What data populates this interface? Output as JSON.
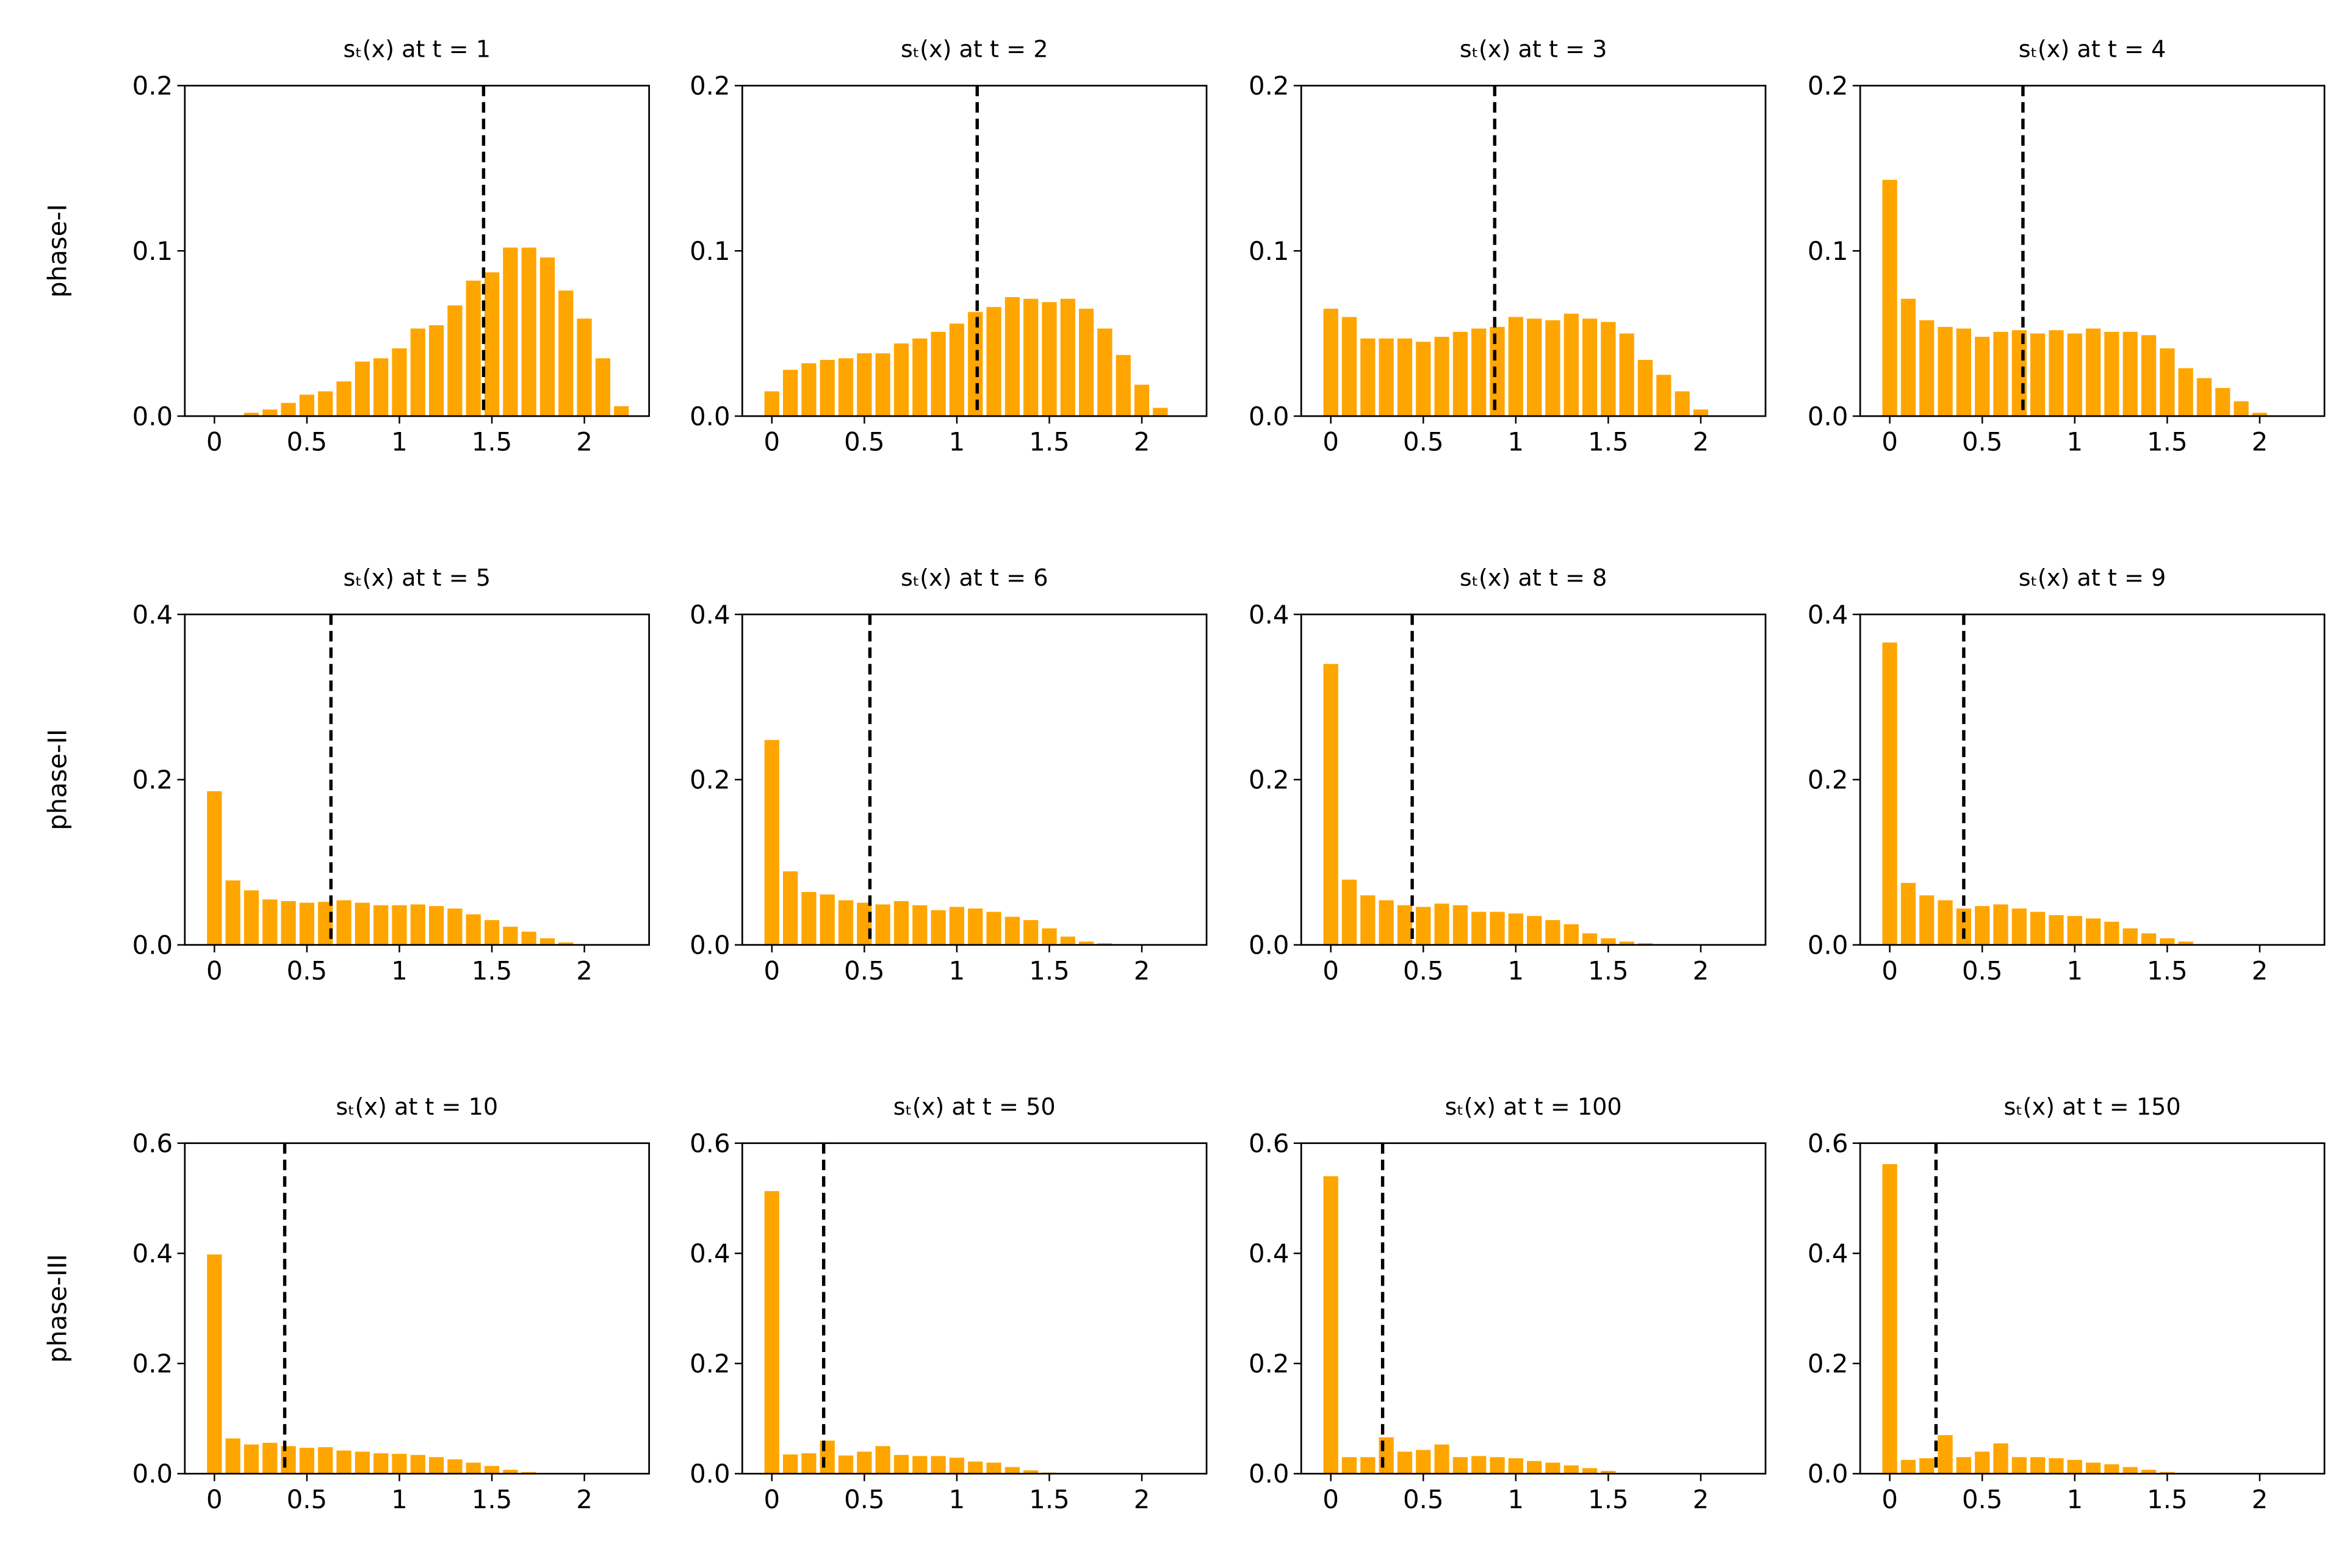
{
  "chart_data": [
    {
      "type": "bar",
      "title": "sₜ(x) at t = 1",
      "ylabel": "phase-I",
      "color": "#ffa500",
      "x": [
        0,
        0.1,
        0.2,
        0.3,
        0.4,
        0.5,
        0.6,
        0.7,
        0.8,
        0.9,
        1.0,
        1.1,
        1.2,
        1.3,
        1.4,
        1.5,
        1.6,
        1.7,
        1.8,
        1.9,
        2.0,
        2.1,
        2.2
      ],
      "values": [
        0,
        0,
        0.002,
        0.004,
        0.008,
        0.013,
        0.015,
        0.021,
        0.033,
        0.035,
        0.041,
        0.053,
        0.055,
        0.067,
        0.082,
        0.087,
        0.102,
        0.102,
        0.096,
        0.076,
        0.059,
        0.035,
        0.006
      ],
      "xlim": [
        -0.16,
        2.35
      ],
      "ylim": [
        0,
        0.2
      ],
      "xticks": [
        0,
        0.5,
        1,
        1.5,
        2
      ],
      "yticks": [
        {
          "value": 0,
          "label": "0.0"
        },
        0.1,
        0.2
      ],
      "vline": 1.455,
      "vline_color": "#000000"
    },
    {
      "type": "bar",
      "title": "sₜ(x) at t = 2",
      "color": "#ffa500",
      "x": [
        0,
        0.1,
        0.2,
        0.3,
        0.4,
        0.5,
        0.6,
        0.7,
        0.8,
        0.9,
        1.0,
        1.1,
        1.2,
        1.3,
        1.4,
        1.5,
        1.6,
        1.7,
        1.8,
        1.9,
        2.0,
        2.1,
        2.2
      ],
      "values": [
        0.015,
        0.028,
        0.032,
        0.034,
        0.035,
        0.038,
        0.038,
        0.044,
        0.047,
        0.051,
        0.056,
        0.063,
        0.066,
        0.072,
        0.071,
        0.069,
        0.071,
        0.065,
        0.053,
        0.037,
        0.019,
        0.005,
        0
      ],
      "xlim": [
        -0.16,
        2.35
      ],
      "ylim": [
        0,
        0.2
      ],
      "xticks": [
        0,
        0.5,
        1,
        1.5,
        2
      ],
      "yticks": [
        {
          "value": 0,
          "label": "0.0"
        },
        0.1,
        0.2
      ],
      "vline": 1.11,
      "vline_color": "#000000"
    },
    {
      "type": "bar",
      "title": "sₜ(x) at t = 3",
      "color": "#ffa500",
      "x": [
        0,
        0.1,
        0.2,
        0.3,
        0.4,
        0.5,
        0.6,
        0.7,
        0.8,
        0.9,
        1.0,
        1.1,
        1.2,
        1.3,
        1.4,
        1.5,
        1.6,
        1.7,
        1.8,
        1.9,
        2.0,
        2.1,
        2.2
      ],
      "values": [
        0.065,
        0.06,
        0.047,
        0.047,
        0.047,
        0.045,
        0.048,
        0.051,
        0.053,
        0.054,
        0.06,
        0.059,
        0.058,
        0.062,
        0.059,
        0.057,
        0.05,
        0.034,
        0.025,
        0.015,
        0.004,
        0,
        0
      ],
      "xlim": [
        -0.16,
        2.35
      ],
      "ylim": [
        0,
        0.2
      ],
      "xticks": [
        0,
        0.5,
        1,
        1.5,
        2
      ],
      "yticks": [
        {
          "value": 0,
          "label": "0.0"
        },
        0.1,
        0.2
      ],
      "vline": 0.886,
      "vline_color": "#000000"
    },
    {
      "type": "bar",
      "title": "sₜ(x) at t = 4",
      "color": "#ffa500",
      "x": [
        0,
        0.1,
        0.2,
        0.3,
        0.4,
        0.5,
        0.6,
        0.7,
        0.8,
        0.9,
        1.0,
        1.1,
        1.2,
        1.3,
        1.4,
        1.5,
        1.6,
        1.7,
        1.8,
        1.9,
        2.0,
        2.1,
        2.2
      ],
      "values": [
        0.143,
        0.071,
        0.058,
        0.054,
        0.053,
        0.048,
        0.051,
        0.052,
        0.05,
        0.052,
        0.05,
        0.053,
        0.051,
        0.051,
        0.049,
        0.041,
        0.029,
        0.023,
        0.017,
        0.009,
        0.002,
        0,
        0
      ],
      "xlim": [
        -0.16,
        2.35
      ],
      "ylim": [
        0,
        0.2
      ],
      "xticks": [
        0,
        0.5,
        1,
        1.5,
        2
      ],
      "yticks": [
        {
          "value": 0,
          "label": "0.0"
        },
        0.1,
        0.2
      ],
      "vline": 0.72,
      "vline_color": "#000000"
    },
    {
      "type": "bar",
      "title": "sₜ(x) at t = 5",
      "ylabel": "phase-II",
      "color": "#ffa500",
      "x": [
        0,
        0.1,
        0.2,
        0.3,
        0.4,
        0.5,
        0.6,
        0.7,
        0.8,
        0.9,
        1.0,
        1.1,
        1.2,
        1.3,
        1.4,
        1.5,
        1.6,
        1.7,
        1.8,
        1.9,
        2.0,
        2.1,
        2.2
      ],
      "values": [
        0.186,
        0.078,
        0.066,
        0.055,
        0.053,
        0.051,
        0.052,
        0.054,
        0.051,
        0.048,
        0.048,
        0.049,
        0.047,
        0.044,
        0.037,
        0.03,
        0.022,
        0.016,
        0.008,
        0.003,
        0,
        0,
        0
      ],
      "xlim": [
        -0.16,
        2.35
      ],
      "ylim": [
        0,
        0.4
      ],
      "xticks": [
        0,
        0.5,
        1,
        1.5,
        2
      ],
      "yticks": [
        {
          "value": 0,
          "label": "0.0"
        },
        0.2,
        0.4
      ],
      "vline": 0.63,
      "vline_color": "#000000"
    },
    {
      "type": "bar",
      "title": "sₜ(x) at t = 6",
      "color": "#ffa500",
      "x": [
        0,
        0.1,
        0.2,
        0.3,
        0.4,
        0.5,
        0.6,
        0.7,
        0.8,
        0.9,
        1.0,
        1.1,
        1.2,
        1.3,
        1.4,
        1.5,
        1.6,
        1.7,
        1.8,
        1.9,
        2.0,
        2.1,
        2.2
      ],
      "values": [
        0.248,
        0.089,
        0.064,
        0.061,
        0.054,
        0.051,
        0.049,
        0.053,
        0.048,
        0.042,
        0.046,
        0.044,
        0.04,
        0.034,
        0.03,
        0.02,
        0.01,
        0.004,
        0.002,
        0,
        0,
        0,
        0
      ],
      "xlim": [
        -0.16,
        2.35
      ],
      "ylim": [
        0,
        0.4
      ],
      "xticks": [
        0,
        0.5,
        1,
        1.5,
        2
      ],
      "yticks": [
        {
          "value": 0,
          "label": "0.0"
        },
        0.2,
        0.4
      ],
      "vline": 0.53,
      "vline_color": "#000000"
    },
    {
      "type": "bar",
      "title": "sₜ(x) at t = 8",
      "color": "#ffa500",
      "x": [
        0,
        0.1,
        0.2,
        0.3,
        0.4,
        0.5,
        0.6,
        0.7,
        0.8,
        0.9,
        1.0,
        1.1,
        1.2,
        1.3,
        1.4,
        1.5,
        1.6,
        1.7,
        1.8,
        1.9,
        2.0,
        2.1,
        2.2
      ],
      "values": [
        0.34,
        0.079,
        0.06,
        0.054,
        0.048,
        0.046,
        0.05,
        0.048,
        0.04,
        0.04,
        0.038,
        0.035,
        0.03,
        0.025,
        0.014,
        0.008,
        0.004,
        0.002,
        0,
        0,
        0,
        0,
        0
      ],
      "xlim": [
        -0.16,
        2.35
      ],
      "ylim": [
        0,
        0.4
      ],
      "xticks": [
        0,
        0.5,
        1,
        1.5,
        2
      ],
      "yticks": [
        {
          "value": 0,
          "label": "0.0"
        },
        0.2,
        0.4
      ],
      "vline": 0.44,
      "vline_color": "#000000"
    },
    {
      "type": "bar",
      "title": "sₜ(x) at t = 9",
      "color": "#ffa500",
      "x": [
        0,
        0.1,
        0.2,
        0.3,
        0.4,
        0.5,
        0.6,
        0.7,
        0.8,
        0.9,
        1.0,
        1.1,
        1.2,
        1.3,
        1.4,
        1.5,
        1.6,
        1.7,
        1.8,
        1.9,
        2.0,
        2.1,
        2.2
      ],
      "values": [
        0.366,
        0.075,
        0.06,
        0.054,
        0.044,
        0.047,
        0.049,
        0.044,
        0.04,
        0.036,
        0.035,
        0.032,
        0.028,
        0.02,
        0.014,
        0.008,
        0.004,
        0,
        0,
        0,
        0,
        0,
        0
      ],
      "xlim": [
        -0.16,
        2.35
      ],
      "ylim": [
        0,
        0.4
      ],
      "xticks": [
        0,
        0.5,
        1,
        1.5,
        2
      ],
      "yticks": [
        {
          "value": 0,
          "label": "0.0"
        },
        0.2,
        0.4
      ],
      "vline": 0.4,
      "vline_color": "#000000"
    },
    {
      "type": "bar",
      "title": "sₜ(x) at t = 10",
      "ylabel": "phase-III",
      "color": "#ffa500",
      "x": [
        0,
        0.1,
        0.2,
        0.3,
        0.4,
        0.5,
        0.6,
        0.7,
        0.8,
        0.9,
        1.0,
        1.1,
        1.2,
        1.3,
        1.4,
        1.5,
        1.6,
        1.7,
        1.8,
        1.9,
        2.0,
        2.1,
        2.2
      ],
      "values": [
        0.398,
        0.064,
        0.053,
        0.056,
        0.05,
        0.047,
        0.048,
        0.042,
        0.04,
        0.037,
        0.036,
        0.034,
        0.03,
        0.026,
        0.02,
        0.014,
        0.007,
        0.003,
        0.001,
        0,
        0,
        0,
        0
      ],
      "xlim": [
        -0.16,
        2.35
      ],
      "ylim": [
        0,
        0.6
      ],
      "xticks": [
        0,
        0.5,
        1,
        1.5,
        2
      ],
      "yticks": [
        {
          "value": 0,
          "label": "0.0"
        },
        0.2,
        0.4,
        0.6
      ],
      "vline": 0.38,
      "vline_color": "#000000"
    },
    {
      "type": "bar",
      "title": "sₜ(x) at t = 50",
      "color": "#ffa500",
      "x": [
        0,
        0.1,
        0.2,
        0.3,
        0.4,
        0.5,
        0.6,
        0.7,
        0.8,
        0.9,
        1.0,
        1.1,
        1.2,
        1.3,
        1.4,
        1.5,
        1.6,
        1.7,
        1.8,
        1.9,
        2.0,
        2.1,
        2.2
      ],
      "values": [
        0.513,
        0.035,
        0.037,
        0.06,
        0.033,
        0.04,
        0.05,
        0.034,
        0.032,
        0.032,
        0.029,
        0.022,
        0.02,
        0.012,
        0.006,
        0.002,
        0,
        0,
        0,
        0,
        0,
        0,
        0
      ],
      "xlim": [
        -0.16,
        2.35
      ],
      "ylim": [
        0,
        0.6
      ],
      "xticks": [
        0,
        0.5,
        1,
        1.5,
        2
      ],
      "yticks": [
        {
          "value": 0,
          "label": "0.0"
        },
        0.2,
        0.4,
        0.6
      ],
      "vline": 0.28,
      "vline_color": "#000000"
    },
    {
      "type": "bar",
      "title": "sₜ(x) at t = 100",
      "color": "#ffa500",
      "x": [
        0,
        0.1,
        0.2,
        0.3,
        0.4,
        0.5,
        0.6,
        0.7,
        0.8,
        0.9,
        1.0,
        1.1,
        1.2,
        1.3,
        1.4,
        1.5,
        1.6,
        1.7,
        1.8,
        1.9,
        2.0,
        2.1,
        2.2
      ],
      "values": [
        0.54,
        0.03,
        0.03,
        0.066,
        0.04,
        0.043,
        0.053,
        0.03,
        0.032,
        0.03,
        0.028,
        0.023,
        0.02,
        0.015,
        0.01,
        0.005,
        0,
        0,
        0,
        0,
        0,
        0,
        0
      ],
      "xlim": [
        -0.16,
        2.35
      ],
      "ylim": [
        0,
        0.6
      ],
      "xticks": [
        0,
        0.5,
        1,
        1.5,
        2
      ],
      "yticks": [
        {
          "value": 0,
          "label": "0.0"
        },
        0.2,
        0.4,
        0.6
      ],
      "vline": 0.28,
      "vline_color": "#000000"
    },
    {
      "type": "bar",
      "title": "sₜ(x) at t = 150",
      "color": "#ffa500",
      "x": [
        0,
        0.1,
        0.2,
        0.3,
        0.4,
        0.5,
        0.6,
        0.7,
        0.8,
        0.9,
        1.0,
        1.1,
        1.2,
        1.3,
        1.4,
        1.5,
        1.6,
        1.7,
        1.8,
        1.9,
        2.0,
        2.1,
        2.2
      ],
      "values": [
        0.562,
        0.025,
        0.028,
        0.07,
        0.03,
        0.04,
        0.055,
        0.03,
        0.03,
        0.028,
        0.025,
        0.02,
        0.017,
        0.012,
        0.007,
        0.003,
        0,
        0,
        0,
        0,
        0,
        0,
        0
      ],
      "xlim": [
        -0.16,
        2.35
      ],
      "ylim": [
        0,
        0.6
      ],
      "xticks": [
        0,
        0.5,
        1,
        1.5,
        2
      ],
      "yticks": [
        {
          "value": 0,
          "label": "0.0"
        },
        0.2,
        0.4,
        0.6
      ],
      "vline": 0.25,
      "vline_color": "#000000"
    }
  ]
}
